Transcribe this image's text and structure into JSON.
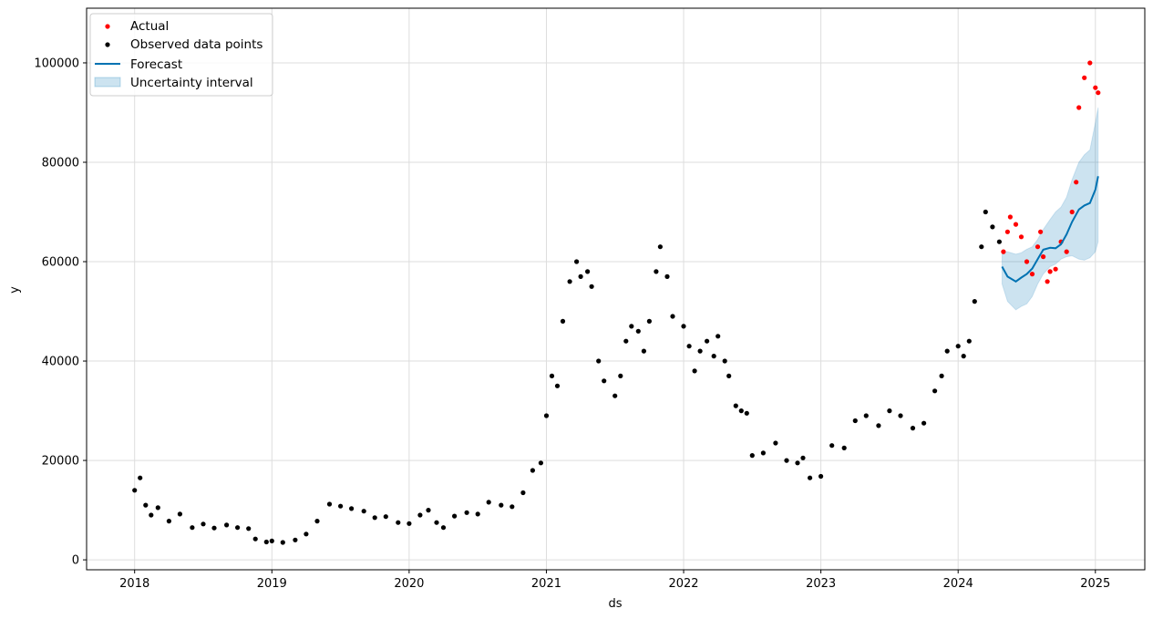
{
  "colors": {
    "actual": "#ff0000",
    "observed": "#000000",
    "forecast": "#0072b2",
    "uncertainty": "#0072b2",
    "grid": "#dddddd"
  },
  "chart_data": {
    "type": "scatter",
    "title": "",
    "xlabel": "ds",
    "ylabel": "y",
    "xlim": [
      2017.65,
      2025.36
    ],
    "ylim": [
      -2000,
      111000
    ],
    "x_ticks": [
      2018,
      2019,
      2020,
      2021,
      2022,
      2023,
      2024,
      2025
    ],
    "x_tick_labels": [
      "2018",
      "2019",
      "2020",
      "2021",
      "2022",
      "2023",
      "2024",
      "2025"
    ],
    "y_ticks": [
      0,
      20000,
      40000,
      60000,
      80000,
      100000
    ],
    "y_tick_labels": [
      "0",
      "20000",
      "40000",
      "60000",
      "80000",
      "100000"
    ],
    "grid": true,
    "legend": {
      "position": "top-left",
      "entries": [
        {
          "label": "Actual",
          "kind": "actual-marker"
        },
        {
          "label": "Observed data points",
          "kind": "observed-marker"
        },
        {
          "label": "Forecast",
          "kind": "forecast-line"
        },
        {
          "label": "Uncertainty interval",
          "kind": "uncertainty-patch"
        }
      ]
    },
    "series": [
      {
        "name": "Observed data points",
        "kind": "scatter",
        "x": [
          2018.0,
          2018.04,
          2018.08,
          2018.12,
          2018.17,
          2018.25,
          2018.33,
          2018.42,
          2018.5,
          2018.58,
          2018.67,
          2018.75,
          2018.83,
          2018.88,
          2018.96,
          2019.0,
          2019.08,
          2019.17,
          2019.25,
          2019.33,
          2019.42,
          2019.5,
          2019.58,
          2019.67,
          2019.75,
          2019.83,
          2019.92,
          2020.0,
          2020.08,
          2020.14,
          2020.2,
          2020.25,
          2020.33,
          2020.42,
          2020.5,
          2020.58,
          2020.67,
          2020.75,
          2020.83,
          2020.9,
          2020.96,
          2021.0,
          2021.04,
          2021.08,
          2021.12,
          2021.17,
          2021.22,
          2021.25,
          2021.3,
          2021.33,
          2021.38,
          2021.42,
          2021.5,
          2021.54,
          2021.58,
          2021.62,
          2021.67,
          2021.71,
          2021.75,
          2021.8,
          2021.83,
          2021.88,
          2021.92,
          2022.0,
          2022.04,
          2022.08,
          2022.12,
          2022.17,
          2022.22,
          2022.25,
          2022.3,
          2022.33,
          2022.38,
          2022.42,
          2022.46,
          2022.5,
          2022.58,
          2022.67,
          2022.75,
          2022.83,
          2022.87,
          2022.92,
          2023.0,
          2023.08,
          2023.17,
          2023.25,
          2023.33,
          2023.42,
          2023.5,
          2023.58,
          2023.67,
          2023.75,
          2023.83,
          2023.88,
          2023.92,
          2024.0,
          2024.04,
          2024.08,
          2024.12,
          2024.17,
          2024.2,
          2024.25,
          2024.3
        ],
        "y": [
          14000,
          16500,
          11000,
          9000,
          10500,
          7800,
          9200,
          6500,
          7200,
          6400,
          7000,
          6500,
          6300,
          4200,
          3600,
          3800,
          3500,
          4000,
          5200,
          7800,
          11200,
          10800,
          10300,
          9800,
          8500,
          8700,
          7500,
          7300,
          9000,
          10000,
          7500,
          6500,
          8800,
          9500,
          9200,
          11600,
          11000,
          10700,
          13500,
          18000,
          19500,
          29000,
          37000,
          35000,
          48000,
          56000,
          60000,
          57000,
          58000,
          55000,
          40000,
          36000,
          33000,
          37000,
          44000,
          47000,
          46000,
          42000,
          48000,
          58000,
          63000,
          57000,
          49000,
          47000,
          43000,
          38000,
          42000,
          44000,
          41000,
          45000,
          40000,
          37000,
          31000,
          30000,
          29500,
          21000,
          21500,
          23500,
          20000,
          19500,
          20500,
          16500,
          16800,
          23000,
          22500,
          28000,
          29000,
          27000,
          30000,
          29000,
          26500,
          27500,
          34000,
          37000,
          42000,
          43000,
          41000,
          44000,
          52000,
          63000,
          70000,
          67000,
          64000
        ]
      },
      {
        "name": "Actual",
        "kind": "scatter",
        "x": [
          2024.33,
          2024.36,
          2024.38,
          2024.42,
          2024.46,
          2024.5,
          2024.54,
          2024.58,
          2024.6,
          2024.62,
          2024.65,
          2024.67,
          2024.71,
          2024.75,
          2024.79,
          2024.83,
          2024.86,
          2024.88,
          2024.92,
          2024.96,
          2025.0,
          2025.02
        ],
        "y": [
          62000,
          66000,
          69000,
          67500,
          65000,
          60000,
          57500,
          63000,
          66000,
          61000,
          56000,
          58000,
          58500,
          64000,
          62000,
          70000,
          76000,
          91000,
          97000,
          100000,
          95000,
          94000
        ]
      },
      {
        "name": "Forecast",
        "kind": "line",
        "x": [
          2024.32,
          2024.36,
          2024.42,
          2024.46,
          2024.5,
          2024.54,
          2024.58,
          2024.62,
          2024.67,
          2024.71,
          2024.75,
          2024.79,
          2024.83,
          2024.88,
          2024.92,
          2024.96,
          2025.0,
          2025.02
        ],
        "y": [
          59000,
          57000,
          56000,
          56800,
          57500,
          58600,
          60500,
          62400,
          62800,
          62700,
          63500,
          65500,
          68000,
          70500,
          71300,
          71800,
          74500,
          77200
        ]
      },
      {
        "name": "Uncertainty interval",
        "kind": "band",
        "x": [
          2024.32,
          2024.36,
          2024.42,
          2024.46,
          2024.5,
          2024.54,
          2024.58,
          2024.62,
          2024.67,
          2024.71,
          2024.75,
          2024.79,
          2024.83,
          2024.88,
          2024.92,
          2024.96,
          2025.0,
          2025.02
        ],
        "lower": [
          55500,
          52000,
          50300,
          51000,
          51500,
          53000,
          55500,
          57500,
          59000,
          59500,
          60500,
          61000,
          61200,
          60500,
          60300,
          60800,
          62000,
          64000
        ],
        "upper": [
          62000,
          62000,
          61500,
          61800,
          62500,
          63000,
          64500,
          66500,
          68500,
          70000,
          71000,
          73000,
          76500,
          80000,
          81500,
          82500,
          88000,
          91000
        ]
      }
    ]
  }
}
